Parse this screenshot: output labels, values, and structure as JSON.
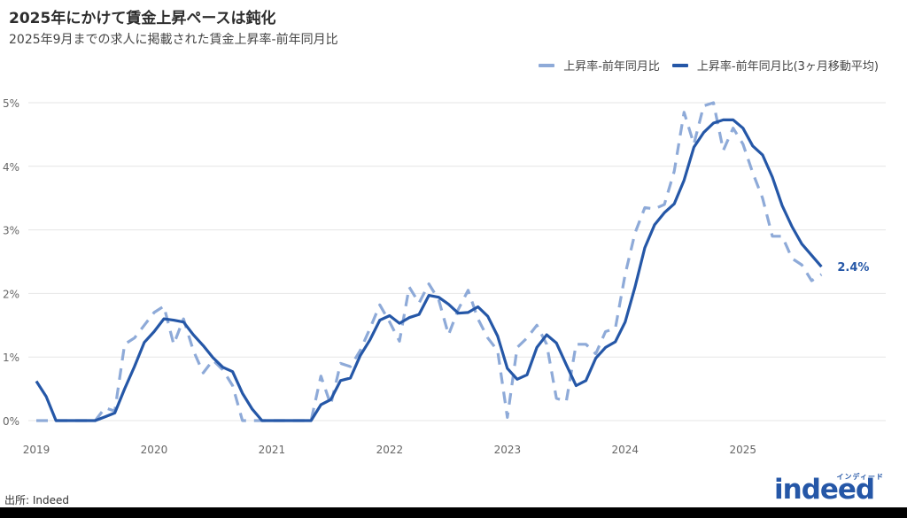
{
  "header": {
    "title": "2025年にかけて賃金上昇ペースは鈍化",
    "subtitle": "2025年9月までの求人に掲載された賃金上昇率-前年同月比"
  },
  "legend": {
    "items": [
      {
        "label": "上昇率-前年同月比",
        "color": "#8eaad8",
        "style": "dashed"
      },
      {
        "label": "上昇率-前年同月比(3ヶ月移動平均)",
        "color": "#2557a7",
        "style": "solid"
      }
    ]
  },
  "end_label": "2.4%",
  "footer": {
    "source": "出所: Indeed",
    "logo_word": "indeed",
    "logo_kana": "インディード"
  },
  "chart_data": {
    "type": "line",
    "title": "2025年にかけて賃金上昇ペースは鈍化",
    "subtitle": "2025年9月までの求人に掲載された賃金上昇率-前年同月比",
    "xlabel": "",
    "ylabel": "",
    "x_start": "2019-01",
    "x_end": "2025-09",
    "frequency": "monthly",
    "x_ticks": [
      "2019",
      "2020",
      "2021",
      "2022",
      "2023",
      "2024",
      "2025"
    ],
    "y_ticks": [
      "0%",
      "1%",
      "2%",
      "3%",
      "4%",
      "5%"
    ],
    "ylim": [
      0,
      5
    ],
    "grid": "horizontal",
    "legend_position": "top-right",
    "annotations": [
      {
        "text": "2.4%",
        "at": "2025-09",
        "series": 1
      }
    ],
    "series": [
      {
        "name": "上昇率-前年同月比",
        "color": "#8eaad8",
        "dash": true,
        "values": [
          0,
          0,
          0,
          0,
          0,
          0,
          0,
          0.2,
          0.15,
          1.2,
          1.3,
          1.5,
          1.7,
          1.8,
          1.2,
          1.6,
          1.1,
          0.75,
          0.95,
          0.8,
          0.55,
          0,
          0,
          0,
          0,
          0,
          0,
          0,
          0,
          0.7,
          0.25,
          0.9,
          0.85,
          1.1,
          1.45,
          1.82,
          1.55,
          1.25,
          2.1,
          1.85,
          2.15,
          1.9,
          1.35,
          1.75,
          2.05,
          1.6,
          1.3,
          1.1,
          0.05,
          1.15,
          1.3,
          1.5,
          1.2,
          0.35,
          0.3,
          1.2,
          1.2,
          1.05,
          1.4,
          1.45,
          2.3,
          2.95,
          3.35,
          3.33,
          3.4,
          3.92,
          4.85,
          4.35,
          4.95,
          5.0,
          4.25,
          4.6,
          4.35,
          3.9,
          3.5,
          2.9,
          2.9,
          2.55,
          2.45,
          2.2,
          2.3
        ]
      },
      {
        "name": "上昇率-前年同月比(3ヶ月移動平均)",
        "color": "#2557a7",
        "dash": false,
        "values": [
          0.62,
          0.38,
          0,
          0,
          0,
          0,
          0,
          0.06,
          0.12,
          0.5,
          0.85,
          1.23,
          1.4,
          1.6,
          1.58,
          1.55,
          1.35,
          1.18,
          0.99,
          0.84,
          0.77,
          0.43,
          0.18,
          0,
          0,
          0,
          0,
          0,
          0,
          0.25,
          0.33,
          0.63,
          0.67,
          1.02,
          1.27,
          1.58,
          1.65,
          1.53,
          1.62,
          1.67,
          1.97,
          1.94,
          1.83,
          1.69,
          1.7,
          1.79,
          1.64,
          1.33,
          0.82,
          0.65,
          0.72,
          1.15,
          1.35,
          1.22,
          0.88,
          0.55,
          0.63,
          0.98,
          1.15,
          1.24,
          1.55,
          2.1,
          2.72,
          3.08,
          3.27,
          3.41,
          3.78,
          4.3,
          4.53,
          4.68,
          4.73,
          4.73,
          4.6,
          4.32,
          4.18,
          3.83,
          3.38,
          3.05,
          2.78,
          2.6,
          2.42
        ]
      }
    ]
  }
}
